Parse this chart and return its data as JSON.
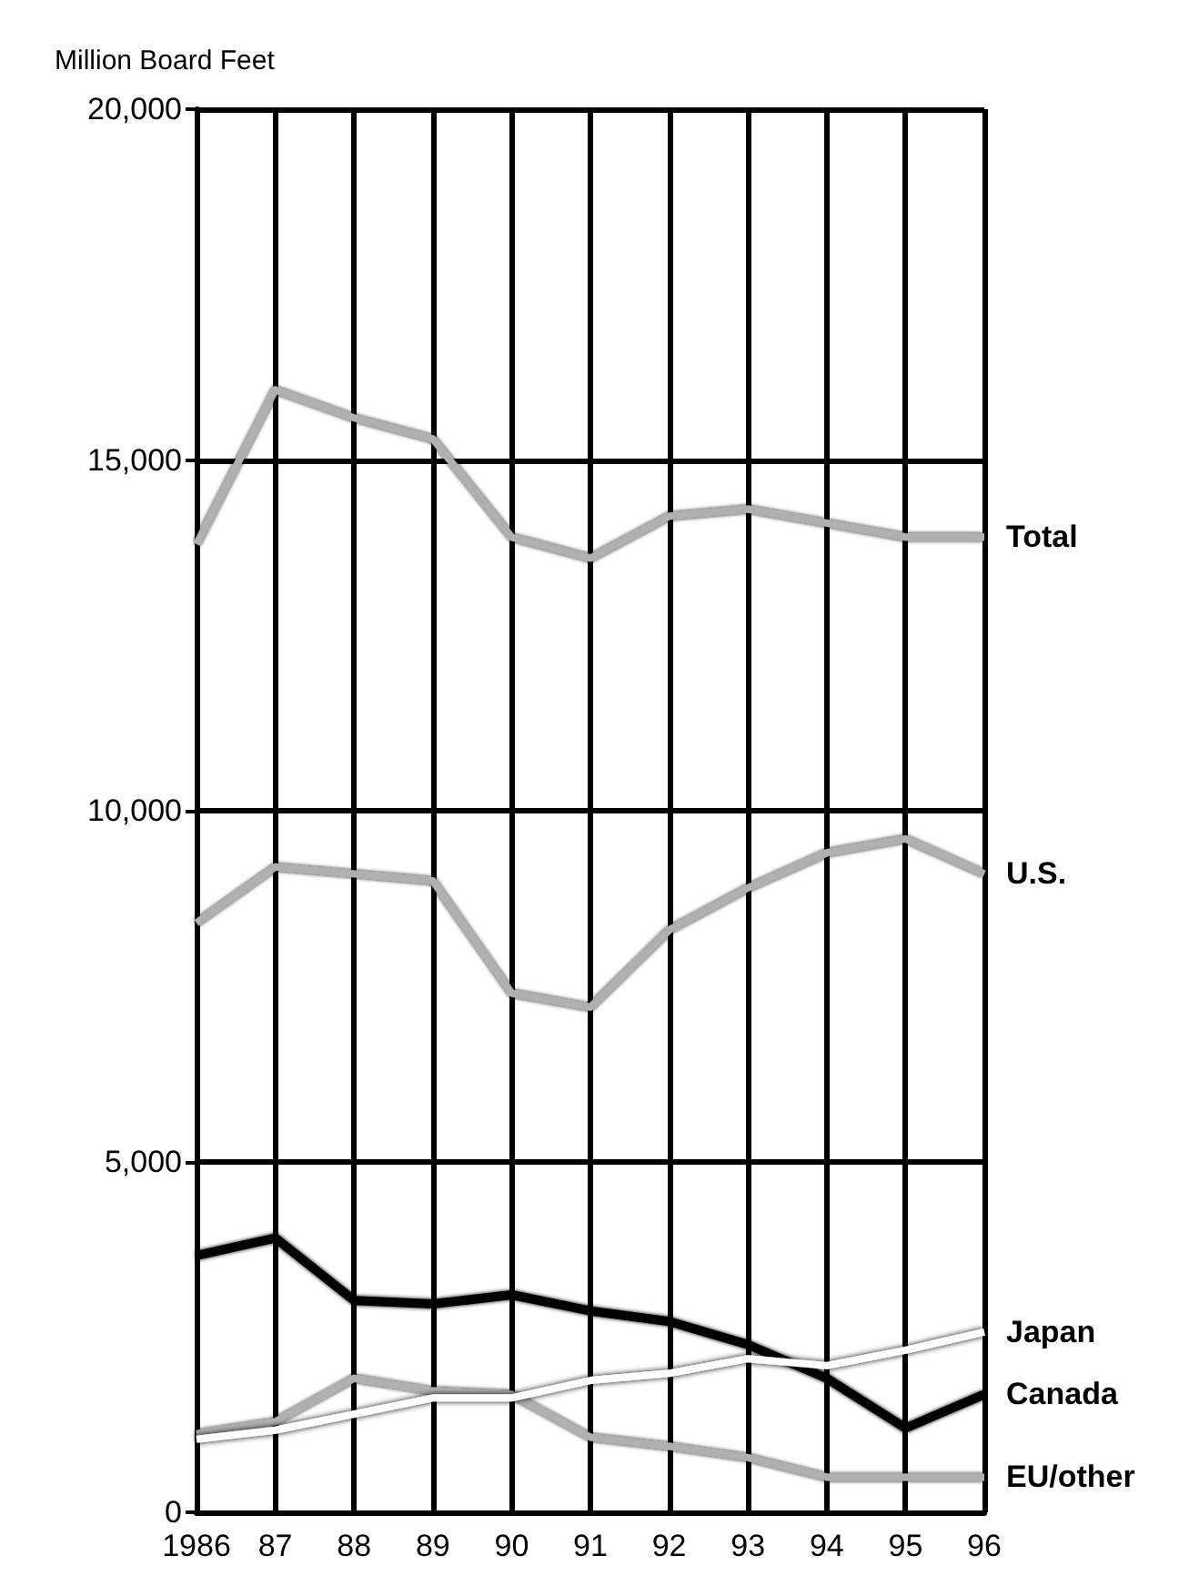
{
  "chart_data": {
    "type": "line",
    "ylabel": "Million Board Feet",
    "categories": [
      "1986",
      "87",
      "88",
      "89",
      "90",
      "91",
      "92",
      "93",
      "94",
      "95",
      "96"
    ],
    "series": [
      {
        "name": "Total",
        "color": "#b0b0b0",
        "values": [
          13800,
          16000,
          15600,
          15300,
          13900,
          13600,
          14200,
          14300,
          14100,
          13900,
          13900
        ]
      },
      {
        "name": "U.S.",
        "color": "#b0b0b0",
        "values": [
          8400,
          9200,
          9100,
          9000,
          7400,
          7200,
          8300,
          8900,
          9400,
          9600,
          9100
        ]
      },
      {
        "name": "Japan",
        "color": "#ffffff",
        "values": [
          1040,
          1170,
          1400,
          1630,
          1630,
          1880,
          1980,
          2190,
          2090,
          2310,
          2570
        ]
      },
      {
        "name": "Canada",
        "color": "#000000",
        "values": [
          3660,
          3910,
          3020,
          2970,
          3100,
          2870,
          2720,
          2390,
          1910,
          1200,
          1680
        ]
      },
      {
        "name": "EU/other",
        "color": "#b0b0b0",
        "values": [
          1120,
          1290,
          1910,
          1730,
          1680,
          1070,
          940,
          780,
          500,
          500,
          500
        ]
      }
    ],
    "ylim": [
      0,
      20000
    ],
    "yticks": [
      {
        "value": 0,
        "label": "0"
      },
      {
        "value": 5000,
        "label": "5,000"
      },
      {
        "value": 10000,
        "label": "10,000"
      },
      {
        "value": 15000,
        "label": "15,000"
      },
      {
        "value": 20000,
        "label": "20,000"
      }
    ],
    "grid": true,
    "legend": false,
    "marker": "none",
    "line_style": "solid"
  }
}
